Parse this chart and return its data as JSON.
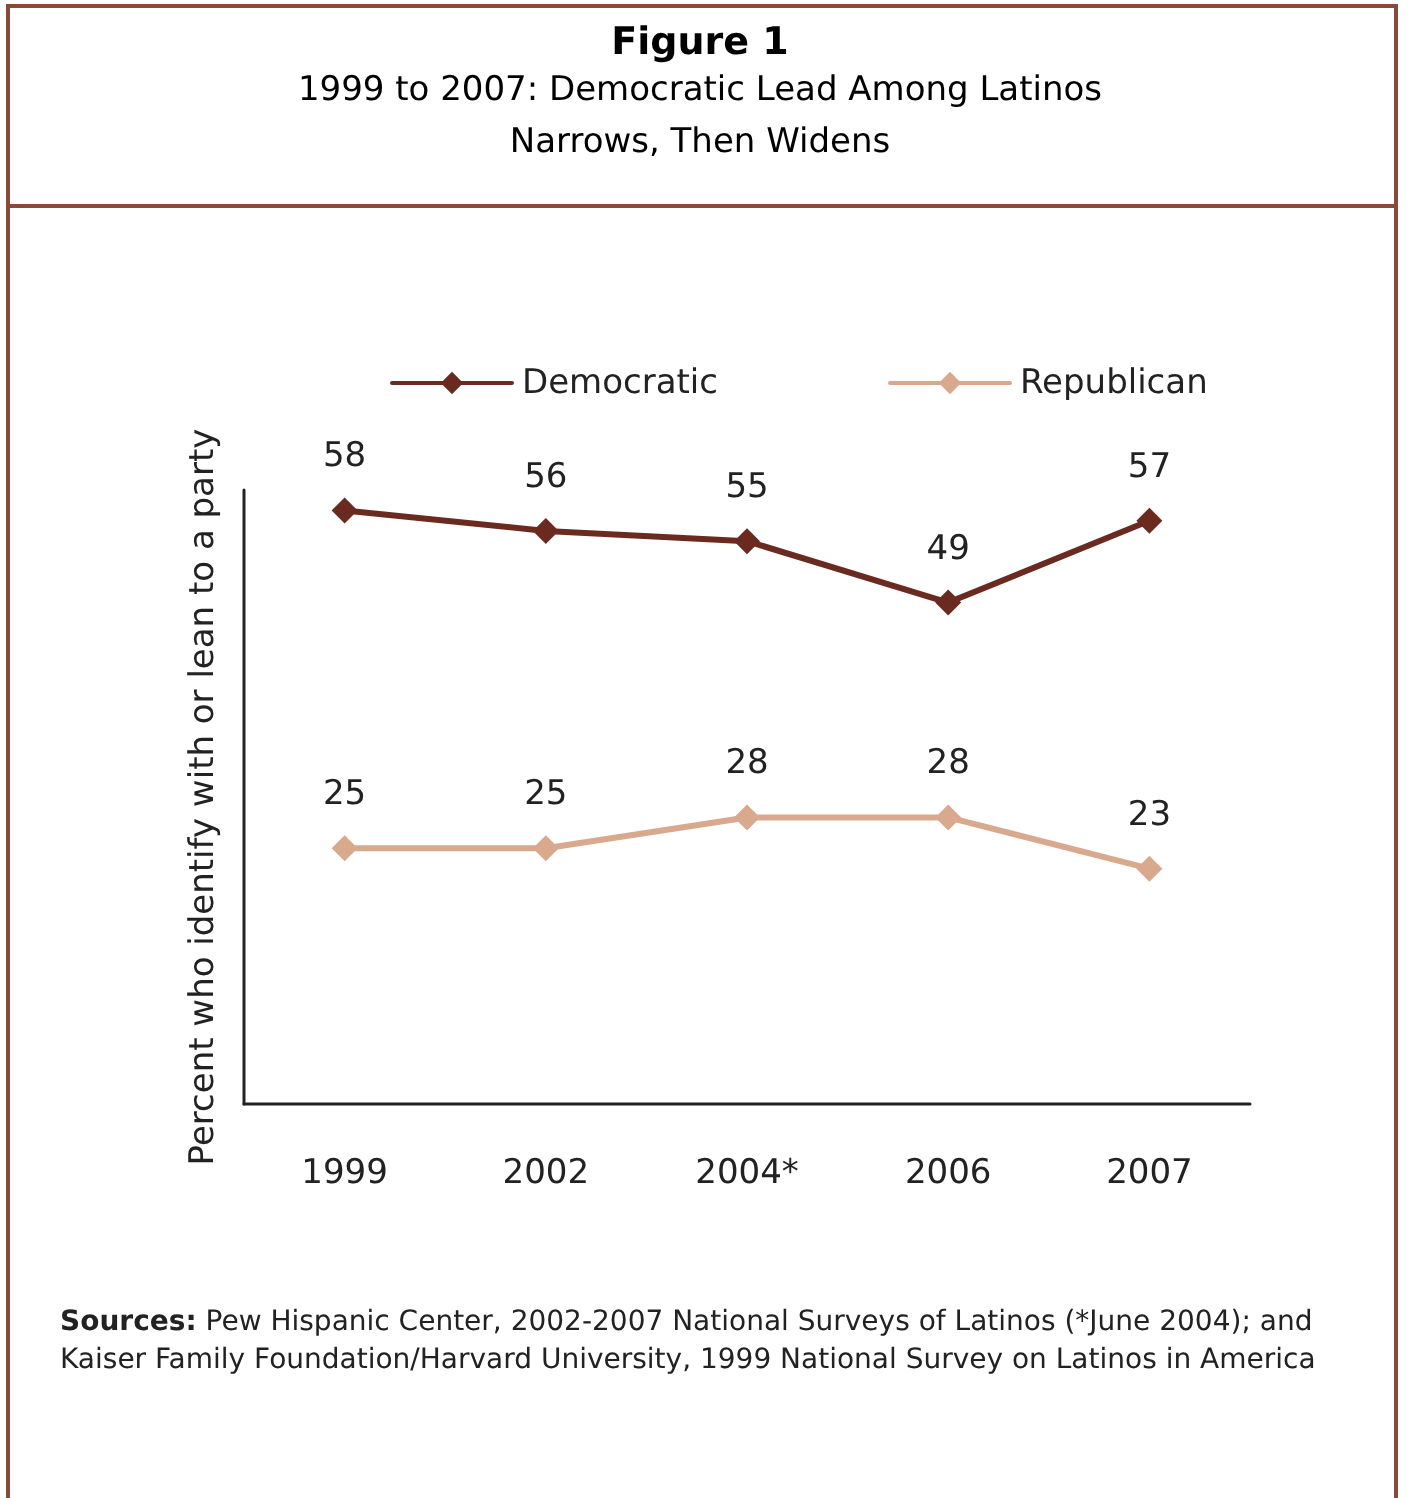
{
  "chart_data": {
    "type": "line",
    "title": "Figure 1",
    "subtitle": "1999 to 2007: Democratic Lead Among Latinos\nNarrows, Then Widens",
    "ylabel": "Percent who identify with or lean to a party",
    "categories": [
      "1999",
      "2002",
      "2004*",
      "2006",
      "2007"
    ],
    "series": [
      {
        "name": "Democratic",
        "color": "#6b2a20",
        "values": [
          58,
          56,
          55,
          49,
          57
        ]
      },
      {
        "name": "Republican",
        "color": "#d9a98e",
        "values": [
          25,
          25,
          28,
          28,
          23
        ]
      }
    ],
    "data_labels": true,
    "marker": "diamond",
    "line_style": "solid",
    "legend": "top",
    "grid": false,
    "annotations": [
      "Sources: Pew Hispanic Center, 2002-2007 National Surveys of Latinos (*June 2004); and Kaiser Family Foundation/Harvard University, 1999 National Survey on Latinos in America"
    ]
  }
}
